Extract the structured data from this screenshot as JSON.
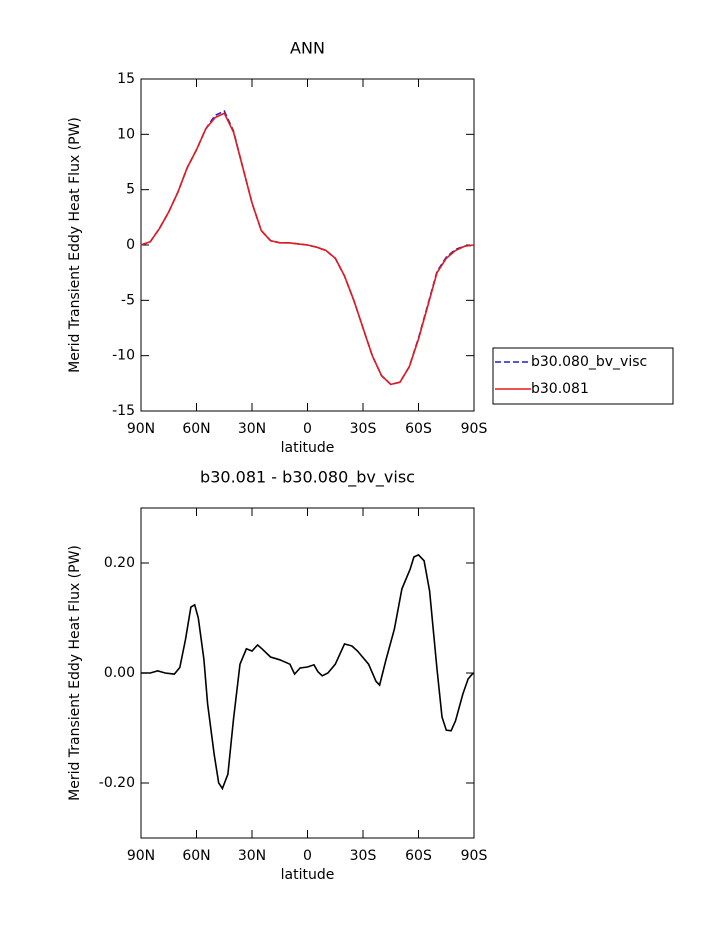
{
  "chart_data": [
    {
      "type": "line",
      "title": "ANN",
      "x_label": "latitude",
      "y_label": "Merid Transient Eddy Heat Flux (PW)",
      "x": [
        90,
        85,
        80,
        75,
        70,
        65,
        60,
        55,
        50,
        45,
        40,
        35,
        30,
        25,
        20,
        15,
        10,
        5,
        0,
        -5,
        -10,
        -15,
        -20,
        -25,
        -30,
        -35,
        -40,
        -45,
        -50,
        -55,
        -60,
        -65,
        -70,
        -75,
        -80,
        -85,
        -90
      ],
      "series": [
        {
          "name": "b30.080_bv_visc",
          "color": "#1f1fd6",
          "dash": true,
          "values": [
            0,
            0.3,
            1.5,
            3.0,
            4.8,
            7.0,
            8.6,
            10.5,
            11.7,
            12.1,
            10.3,
            7.0,
            3.8,
            1.3,
            0.4,
            0.2,
            0.2,
            0.1,
            0,
            -0.2,
            -0.5,
            -1.2,
            -2.8,
            -5.0,
            -7.5,
            -10.0,
            -11.8,
            -12.6,
            -12.4,
            -11.0,
            -8.4,
            -5.4,
            -2.4,
            -1.1,
            -0.4,
            -0.1,
            0
          ]
        },
        {
          "name": "b30.081",
          "color": "#e31a1c",
          "dash": false,
          "values": [
            0,
            0.3,
            1.5,
            3.0,
            4.8,
            7.0,
            8.6,
            10.5,
            11.5,
            11.9,
            10.2,
            7.0,
            3.8,
            1.3,
            0.4,
            0.2,
            0.2,
            0.1,
            0,
            -0.2,
            -0.5,
            -1.2,
            -2.8,
            -5.0,
            -7.5,
            -10.0,
            -11.8,
            -12.6,
            -12.4,
            -11.0,
            -8.5,
            -5.5,
            -2.5,
            -1.2,
            -0.5,
            -0.1,
            0
          ]
        }
      ],
      "xlim": [
        90,
        -90
      ],
      "xticks": [
        {
          "value": 90,
          "label": "90N"
        },
        {
          "value": 60,
          "label": "60N"
        },
        {
          "value": 30,
          "label": "30N"
        },
        0,
        {
          "value": -30,
          "label": "30S"
        },
        {
          "value": -60,
          "label": "60S"
        },
        {
          "value": -90,
          "label": "90S"
        }
      ],
      "ylim": [
        -15,
        15
      ],
      "yticks": [
        -15,
        -10,
        -5,
        0,
        5,
        10,
        15
      ],
      "legend": "outside-right"
    },
    {
      "type": "line",
      "title": "b30.081 - b30.080_bv_visc",
      "x_label": "latitude",
      "y_label": "Merid Transient Eddy Heat Flux (PW)",
      "x": [
        90,
        85,
        81,
        77,
        72,
        69,
        66,
        63,
        61,
        59,
        56,
        54,
        50.5,
        48,
        46,
        43,
        40,
        36.5,
        33,
        30,
        27,
        24.6,
        20,
        15,
        9.5,
        7,
        4,
        0,
        -3.5,
        -5.7,
        -8,
        -11,
        -15,
        -20,
        -24,
        -27,
        -33,
        -37,
        -39,
        -42.5,
        -47,
        -51,
        -55.5,
        -57.5,
        -60,
        -63,
        -66,
        -70,
        -72.7,
        -75,
        -77.6,
        -80,
        -84,
        -86.8,
        -89,
        -90
      ],
      "values": [
        0,
        0,
        0.004,
        0,
        -0.002,
        0.01,
        0.06,
        0.12,
        0.124,
        0.1,
        0.025,
        -0.056,
        -0.147,
        -0.2,
        -0.21,
        -0.184,
        -0.084,
        0.016,
        0.044,
        0.04,
        0.051,
        0.044,
        0.029,
        0.024,
        0.016,
        -0.002,
        0.009,
        0.011,
        0.015,
        0.002,
        -0.005,
        0,
        0.016,
        0.053,
        0.049,
        0.04,
        0.016,
        -0.015,
        -0.022,
        0.025,
        0.08,
        0.153,
        0.189,
        0.211,
        0.215,
        0.204,
        0.149,
        0.007,
        -0.08,
        -0.104,
        -0.105,
        -0.087,
        -0.038,
        -0.011,
        -0.002,
        0
      ],
      "color": "#000000",
      "xlim": [
        90,
        -90
      ],
      "xticks": [
        {
          "value": 90,
          "label": "90N"
        },
        {
          "value": 60,
          "label": "60N"
        },
        {
          "value": 30,
          "label": "30N"
        },
        0,
        {
          "value": -30,
          "label": "30S"
        },
        {
          "value": -60,
          "label": "60S"
        },
        {
          "value": -90,
          "label": "90S"
        }
      ],
      "ylim": [
        -0.3,
        0.3
      ],
      "yticks": [
        {
          "value": -0.2,
          "label": "-0.20"
        },
        {
          "value": 0,
          "label": "0.00"
        },
        {
          "value": 0.2,
          "label": "0.20"
        }
      ]
    }
  ]
}
